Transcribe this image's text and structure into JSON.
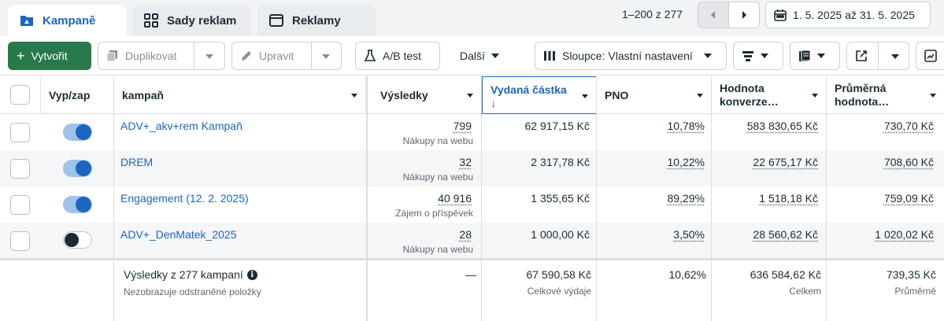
{
  "tabs": [
    {
      "label": "Kampaně",
      "icon": "folder-icon",
      "active": true
    },
    {
      "label": "Sady reklam",
      "icon": "grid-icon",
      "active": false
    },
    {
      "label": "Reklamy",
      "icon": "ad-window-icon",
      "active": false
    }
  ],
  "pager": {
    "text": "1–200 z 277"
  },
  "date_range": {
    "label": "1. 5. 2025 až 31. 5. 2025",
    "icon": "calendar-icon"
  },
  "toolbar": {
    "create_label": "Vytvořit",
    "duplicate_label": "Duplikovat",
    "edit_label": "Upravit",
    "ab_test_label": "A/B test",
    "more_label": "Další",
    "columns_label": "Sloupce: Vlastní nastavení"
  },
  "columns": {
    "toggle": "Vyp/zap",
    "campaign": "kampaň",
    "results": "Výsledky",
    "spent": "Vydaná částka",
    "sort_arrow": "↓",
    "pno": "PNO",
    "conv_value_l1": "Hodnota",
    "conv_value_l2": "konverze…",
    "avg_value_l1": "Průměrná",
    "avg_value_l2": "hodnota…"
  },
  "rows": [
    {
      "name": "ADV+_akv+rem Kampaň",
      "on": true,
      "results": "799",
      "results_type": "Nákupy na webu",
      "spent": "62 917,15 Kč",
      "pno": "10,78%",
      "conv_value": "583 830,65 Kč",
      "avg_value": "730,70 Kč"
    },
    {
      "name": "DREM",
      "on": true,
      "results": "32",
      "results_type": "Nákupy na webu",
      "spent": "2 317,78 Kč",
      "pno": "10,22%",
      "conv_value": "22 675,17 Kč",
      "avg_value": "708,60 Kč"
    },
    {
      "name": "Engagement (12. 2. 2025)",
      "on": true,
      "results": "40 916",
      "results_type": "Zájem o příspěvek",
      "spent": "1 355,65 Kč",
      "pno": "89,29%",
      "conv_value": "1 518,18 Kč",
      "avg_value": "759,09 Kč"
    },
    {
      "name": "ADV+_DenMatek_2025",
      "on": false,
      "results": "28",
      "results_type": "Nákupy na webu",
      "spent": "1 000,00 Kč",
      "pno": "3,50%",
      "conv_value": "28 560,62 Kč",
      "avg_value": "1 020,02 Kč"
    }
  ],
  "totals": {
    "title": "Výsledky z 277 kampaní",
    "subtitle": "Nezobrazuje odstraněné položky",
    "results": "—",
    "spent": "67 590,58 Kč",
    "spent_label": "Celkové výdaje",
    "pno": "10,62%",
    "conv_value": "636 584,62 Kč",
    "conv_value_label": "Celkem",
    "avg_value": "739,35 Kč",
    "avg_value_label": "Průměrně"
  },
  "colors": {
    "accent": "#1d65c1",
    "create_button": "#28794b",
    "toggle_on": "#1d65c1"
  }
}
